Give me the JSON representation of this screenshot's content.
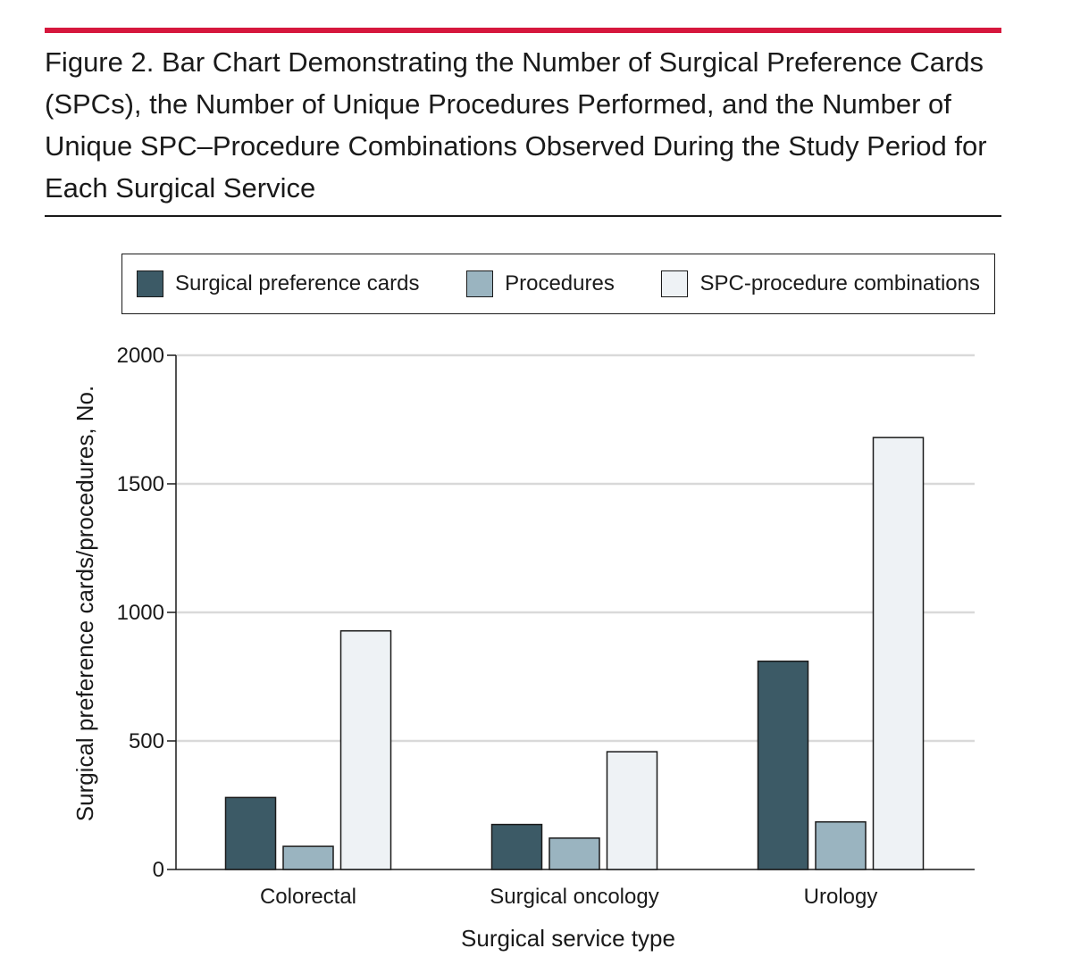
{
  "figure": {
    "title": "Figure 2. Bar Chart Demonstrating the Number of Surgical Preference Cards (SPCs), the Number of Unique Procedures Performed, and the Number of Unique SPC–Procedure Combinations Observed During the Study Period for Each Surgical Service",
    "accent_color": "#d6173d"
  },
  "chart_data": {
    "type": "bar",
    "title": "",
    "xlabel": "Surgical service type",
    "ylabel": "Surgical preference cards/procedures, No.",
    "ylim": [
      0,
      2000
    ],
    "yticks": [
      0,
      500,
      1000,
      1500,
      2000
    ],
    "ytick_labels": [
      "0",
      "500",
      "1000",
      "1500",
      "2000"
    ],
    "grid": true,
    "legend_position": "top",
    "categories": [
      "Colorectal",
      "Surgical oncology",
      "Urology"
    ],
    "series": [
      {
        "name": "Surgical preference cards",
        "color": "#3c5a66",
        "values": [
          280,
          175,
          810
        ]
      },
      {
        "name": "Procedures",
        "color": "#9ab4c0",
        "values": [
          90,
          122,
          185
        ]
      },
      {
        "name": "SPC-procedure combinations",
        "color": "#eef2f5",
        "values": [
          928,
          458,
          1680
        ]
      }
    ]
  }
}
